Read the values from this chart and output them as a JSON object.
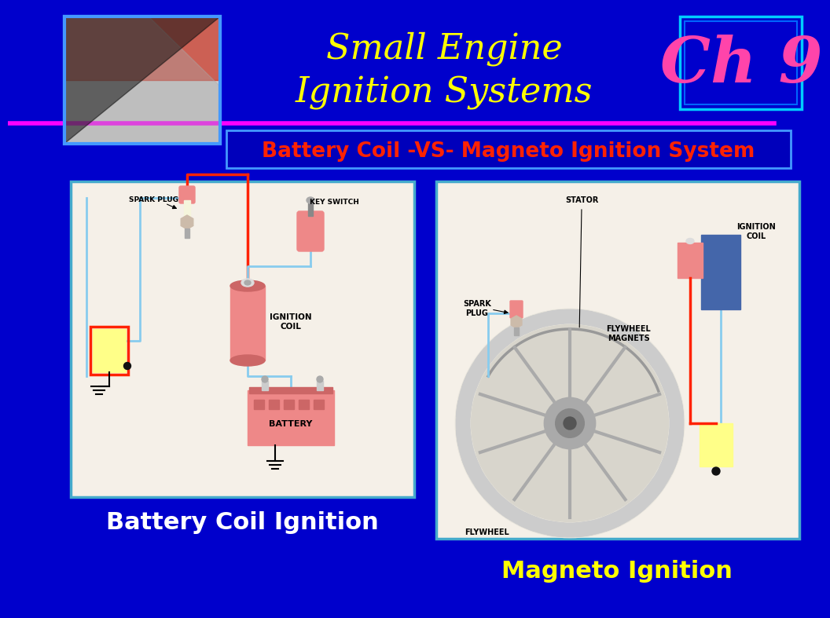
{
  "bg_color": "#0000CC",
  "title_line1": "Small Engine",
  "title_line2": "Ignition Systems",
  "title_color": "#FFFF00",
  "title_fontsize": 32,
  "ch9_text": "Ch 9",
  "ch9_color": "#FF44AA",
  "ch9_fontsize": 58,
  "ch9_box_edgecolor": "#00CCFF",
  "ch9_box_inner_edgecolor": "#0066FF",
  "pink_line_color": "#FF00FF",
  "subtitle_text": "Battery Coil -VS- Magneto Ignition System",
  "subtitle_color": "#FF2200",
  "subtitle_bg": "#0000BB",
  "subtitle_border": "#4499FF",
  "subtitle_fontsize": 19,
  "label1": "Battery Coil Ignition",
  "label1_color": "#FFFFFF",
  "label1_fontsize": 22,
  "label2": "Magneto Ignition",
  "label2_color": "#FFFF00",
  "label2_fontsize": 22,
  "diagram_border_color": "#44AACC",
  "top_image_border": "#4499FF",
  "wire_cyan": "#88CCEE",
  "wire_red": "#FF2200",
  "pink_component": "#EE8888",
  "yellow_box": "#FFFF88",
  "battery_color": "#EE8888",
  "diagram_bg": "#F5F0E8"
}
